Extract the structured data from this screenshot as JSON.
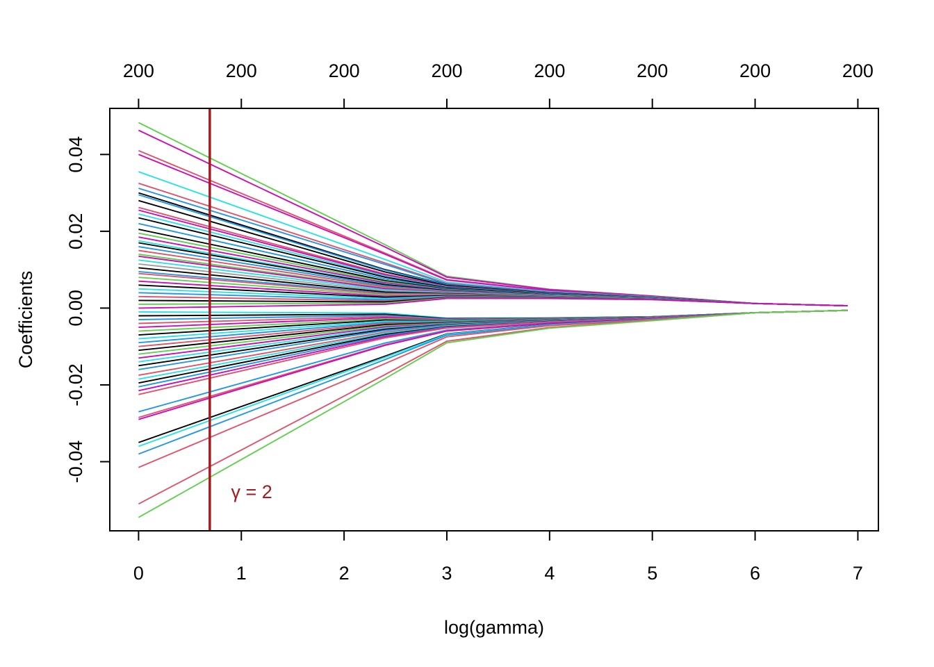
{
  "chart_data": {
    "type": "line",
    "xlabel": "log(gamma)",
    "ylabel": "Coefficients",
    "xlim": [
      -0.28,
      7.2
    ],
    "ylim": [
      -0.058,
      0.052
    ],
    "x_ticks": [
      0,
      1,
      2,
      3,
      4,
      5,
      6,
      7
    ],
    "y_ticks": [
      -0.04,
      -0.02,
      0.0,
      0.02,
      0.04
    ],
    "y_tick_labels": [
      "-0.04",
      "-0.02",
      "0.00",
      "0.02",
      "0.04"
    ],
    "top_axis": {
      "positions": [
        0,
        1,
        2,
        3,
        4,
        5,
        6,
        7
      ],
      "labels": [
        "200",
        "200",
        "200",
        "200",
        "200",
        "200",
        "200",
        "200"
      ]
    },
    "x": [
      0,
      2.4,
      3.0,
      4.0,
      5.0,
      6.0,
      6.9
    ],
    "series_start_values": [
      0.0483,
      0.0463,
      0.041,
      0.04,
      0.0355,
      0.0325,
      0.0312,
      0.03,
      0.0295,
      0.028,
      0.0262,
      0.0255,
      0.0245,
      0.0235,
      0.022,
      0.0205,
      0.0195,
      0.0185,
      0.0175,
      0.017,
      0.016,
      0.015,
      0.014,
      0.0135,
      0.0125,
      0.0115,
      0.0105,
      0.0095,
      0.009,
      0.008,
      0.007,
      0.006,
      0.005,
      0.004,
      0.003,
      0.002,
      0.001,
      0.0,
      -0.001,
      -0.002,
      -0.003,
      -0.004,
      -0.005,
      -0.006,
      -0.007,
      -0.008,
      -0.009,
      -0.01,
      -0.011,
      -0.012,
      -0.013,
      -0.014,
      -0.015,
      -0.016,
      -0.0175,
      -0.0185,
      -0.0195,
      -0.0205,
      -0.0215,
      -0.0225,
      -0.027,
      -0.0285,
      -0.029,
      -0.035,
      -0.036,
      -0.038,
      -0.0415,
      -0.051,
      -0.0545
    ],
    "series_colors": [
      "#61D04F",
      "#CD0BBC",
      "#DF536B",
      "#CD0BBC",
      "#28E2E5",
      "#DF536B",
      "#2297E6",
      "#000000",
      "#2297E6",
      "#000000",
      "#DF536B",
      "#CD0BBC",
      "#28E2E5",
      "#000000",
      "#2297E6",
      "#000000",
      "#61D04F",
      "#CD0BBC",
      "#28E2E5",
      "#000000",
      "#2297E6",
      "#DF536B",
      "#61D04F",
      "#CD0BBC",
      "#28E2E5",
      "#9E9E9E",
      "#000000",
      "#2297E6",
      "#DF536B",
      "#61D04F",
      "#CD0BBC",
      "#000000",
      "#28E2E5",
      "#2297E6",
      "#DF536B",
      "#000000",
      "#61D04F",
      "#CD0BBC",
      "#28E2E5",
      "#000000",
      "#2297E6",
      "#DF536B",
      "#CD0BBC",
      "#61D04F",
      "#000000",
      "#28E2E5",
      "#2297E6",
      "#DF536B",
      "#000000",
      "#61D04F",
      "#CD0BBC",
      "#28E2E5",
      "#000000",
      "#2297E6",
      "#DF536B",
      "#28E2E5",
      "#000000",
      "#2297E6",
      "#CD0BBC",
      "#DF536B",
      "#2297E6",
      "#DF536B",
      "#CD0BBC",
      "#000000",
      "#28E2E5",
      "#2297E6",
      "#DF536B",
      "#DF536B",
      "#61D04F"
    ],
    "vline": {
      "x": 0.693,
      "color": "#A31A1F",
      "label": "γ = 2",
      "label_x": 0.9,
      "label_y": -0.0495
    },
    "grid": false,
    "legend": "none"
  }
}
